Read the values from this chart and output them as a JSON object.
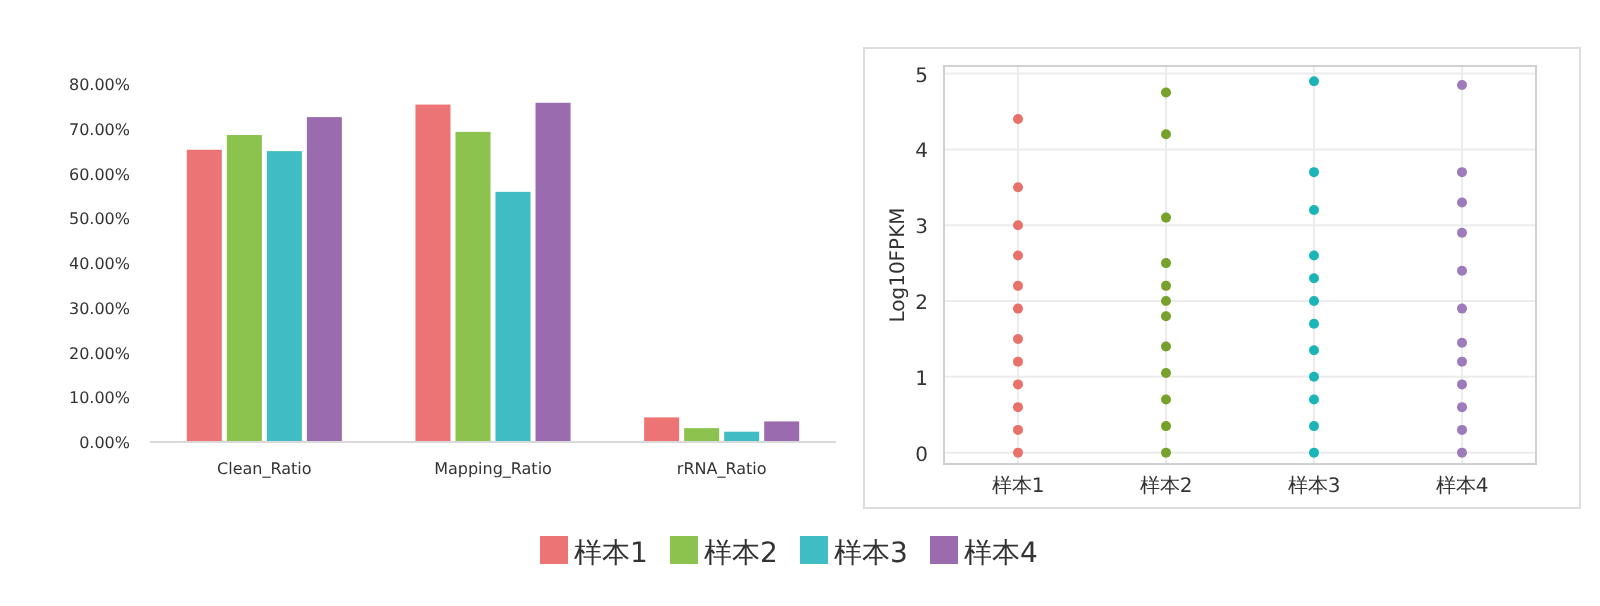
{
  "chart_data": [
    {
      "type": "bar",
      "categories": [
        "Clean_Ratio",
        "Mapping_Ratio",
        "rRNA_Ratio"
      ],
      "ylim": [
        0,
        80
      ],
      "yticks": [
        {
          "value": 0,
          "label": "0.00%"
        },
        {
          "value": 10,
          "label": "10.00%"
        },
        {
          "value": 20,
          "label": "20.00%"
        },
        {
          "value": 30,
          "label": "30.00%"
        },
        {
          "value": 40,
          "label": "40.00%"
        },
        {
          "value": 50,
          "label": "50.00%"
        },
        {
          "value": 60,
          "label": "60.00%"
        },
        {
          "value": 70,
          "label": "70.00%"
        },
        {
          "value": 80,
          "label": "80.00%"
        }
      ],
      "legend": "bottom",
      "series": [
        {
          "name": "样本1",
          "color": "#ec7474",
          "values": [
            65.3,
            75.4,
            5.5
          ]
        },
        {
          "name": "样本2",
          "color": "#8cc34f",
          "values": [
            68.6,
            69.3,
            3.1
          ]
        },
        {
          "name": "样本3",
          "color": "#3fbcc4",
          "values": [
            65.0,
            55.9,
            2.3
          ]
        },
        {
          "name": "样本4",
          "color": "#9a6bae",
          "values": [
            72.6,
            75.8,
            4.6
          ]
        }
      ]
    },
    {
      "type": "scatter",
      "ylabel": "Log10FPKM",
      "categories": [
        "样本1",
        "样本2",
        "样本3",
        "样本4"
      ],
      "ylim": [
        -0.15,
        5.1
      ],
      "yticks": [
        0,
        1,
        2,
        3,
        4,
        5
      ],
      "grid": true,
      "marker": "circle",
      "series": [
        {
          "color": "#e8726a",
          "x": [
            "样本1",
            "样本1",
            "样本1",
            "样本1",
            "样本1",
            "样本1",
            "样本1",
            "样本1",
            "样本1",
            "样本1",
            "样本1",
            "样本1"
          ],
          "values": [
            0,
            0.3,
            0.6,
            0.9,
            1.2,
            1.5,
            1.9,
            2.2,
            2.6,
            3.0,
            3.5,
            4.4
          ]
        },
        {
          "color": "#76a12b",
          "x": [
            "样本2",
            "样本2",
            "样本2",
            "样本2",
            "样本2",
            "样本2",
            "样本2",
            "样本2",
            "样本2",
            "样本2",
            "样本2",
            "样本2"
          ],
          "values": [
            0,
            0.35,
            0.7,
            1.05,
            1.4,
            1.8,
            2.0,
            2.2,
            2.5,
            3.1,
            4.2,
            4.75
          ]
        },
        {
          "color": "#1bb5b9",
          "x": [
            "样本3",
            "样本3",
            "样本3",
            "样本3",
            "样本3",
            "样本3",
            "样本3",
            "样本3",
            "样本3",
            "样本3",
            "样本3",
            "样本3"
          ],
          "values": [
            0,
            0.35,
            0.7,
            1.0,
            1.35,
            1.7,
            2.0,
            2.3,
            2.6,
            3.2,
            3.7,
            4.9
          ]
        },
        {
          "color": "#9e7bbb",
          "x": [
            "样本4",
            "样本4",
            "样本4",
            "样本4",
            "样本4",
            "样本4",
            "样本4",
            "样本4",
            "样本4",
            "样本4",
            "样本4",
            "样本4"
          ],
          "values": [
            0,
            0.3,
            0.6,
            0.9,
            1.2,
            1.45,
            1.9,
            2.4,
            2.9,
            3.3,
            3.7,
            4.85
          ]
        }
      ]
    }
  ]
}
